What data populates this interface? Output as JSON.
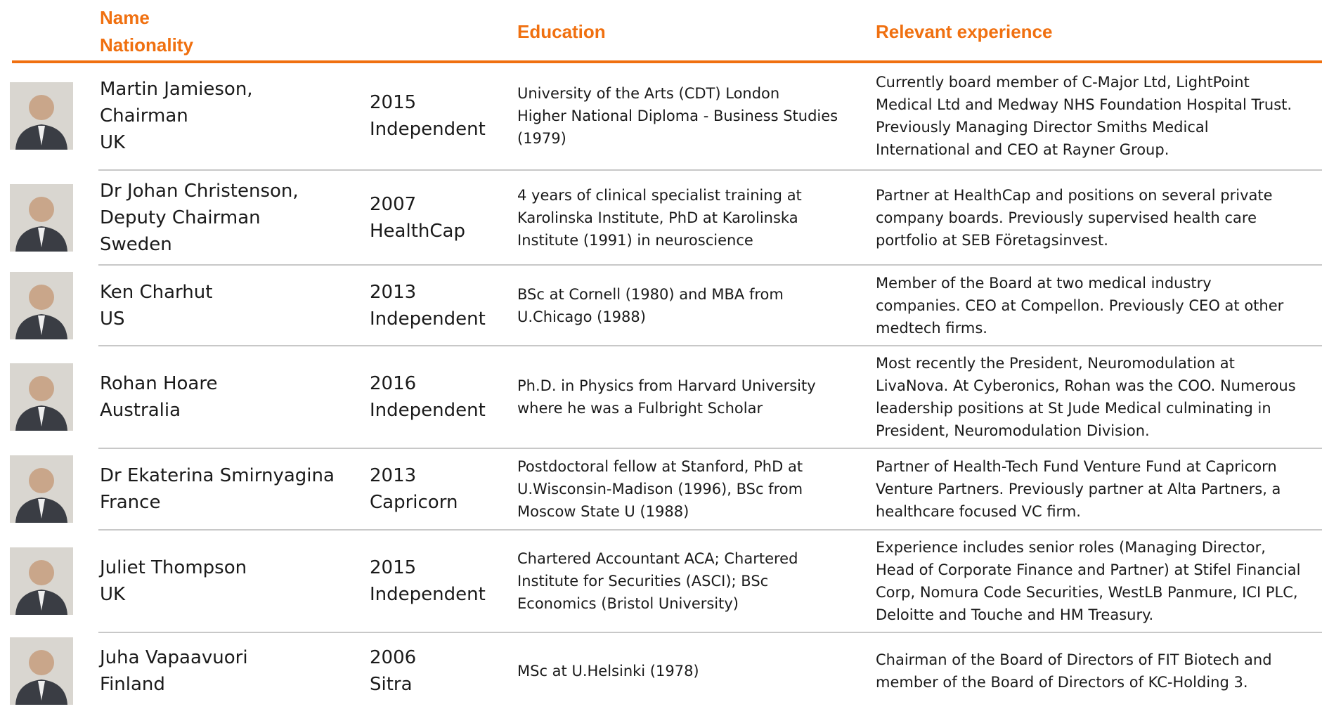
{
  "header": {
    "name": "Name",
    "nationality": "Nationality",
    "education": "Education",
    "experience": "Relevant experience"
  },
  "rows": [
    {
      "name": [
        "Martin Jamieson,",
        "Chairman",
        "UK"
      ],
      "year": "2015",
      "affiliation": "Independent",
      "education": [
        "University of the Arts (CDT) London",
        "Higher National Diploma - Business Studies",
        "(1979)"
      ],
      "experience": [
        "Currently board member of C-Major Ltd, LightPoint",
        "Medical Ltd and Medway  NHS Foundation Hospital Trust.",
        "Previously Managing Director Smiths Medical",
        "International and CEO at Rayner Group."
      ]
    },
    {
      "name": [
        "Dr Johan Christenson,",
        "Deputy Chairman",
        "Sweden"
      ],
      "year": "2007",
      "affiliation": "HealthCap",
      "education": [
        "4 years of clinical specialist training at",
        "Karolinska Institute, PhD at Karolinska",
        "Institute (1991) in neuroscience"
      ],
      "experience": [
        "Partner at HealthCap and positions on several private",
        "company boards. Previously supervised health care",
        "portfolio at SEB Företagsinvest."
      ]
    },
    {
      "name": [
        "Ken Charhut",
        "US"
      ],
      "year": "2013",
      "affiliation": "Independent",
      "education": [
        "BSc at Cornell (1980) and MBA from",
        "U.Chicago (1988)"
      ],
      "experience": [
        "Member of the Board at two medical industry",
        "companies. CEO at Compellon. Previously CEO at other",
        "medtech firms."
      ]
    },
    {
      "name": [
        "Rohan Hoare",
        "Australia"
      ],
      "year": "2016",
      "affiliation": "Independent",
      "education": [
        "Ph.D. in Physics from Harvard University",
        "where he was a Fulbright Scholar"
      ],
      "experience": [
        "Most recently the President, Neuromodulation at",
        "LivaNova. At Cyberonics, Rohan was the COO. Numerous",
        "leadership positions at St Jude Medical culminating in",
        "President, Neuromodulation Division."
      ]
    },
    {
      "name": [
        "Dr Ekaterina  Smirnyagina",
        "France"
      ],
      "year": "2013",
      "affiliation": "Capricorn",
      "education": [
        "Postdoctoral fellow at Stanford, PhD at",
        "U.Wisconsin-Madison (1996), BSc from",
        "Moscow State U (1988)"
      ],
      "experience": [
        "Partner of Health-Tech Fund Venture Fund at Capricorn",
        "Venture Partners. Previously partner at Alta Partners, a",
        "healthcare focused VC firm."
      ]
    },
    {
      "name": [
        "Juliet Thompson",
        "UK"
      ],
      "year": "2015",
      "affiliation": "Independent",
      "education": [
        "Chartered Accountant ACA; Chartered",
        "Institute for Securities (ASCI); BSc",
        "Economics (Bristol University)"
      ],
      "experience": [
        "Experience includes senior roles (Managing Director,",
        "Head of Corporate Finance and Partner) at Stifel Financial",
        "Corp, Nomura Code Securities, WestLB Panmure, ICI PLC,",
        "Deloitte and Touche and HM Treasury."
      ]
    },
    {
      "name": [
        "Juha Vapaavuori",
        "Finland"
      ],
      "year": "2006",
      "affiliation": "Sitra",
      "education": [
        "MSc at U.Helsinki (1978)"
      ],
      "experience": [
        "Chairman of the Board of Directors of FIT Biotech and",
        "member of the Board of Directors of KC-Holding 3."
      ]
    }
  ]
}
